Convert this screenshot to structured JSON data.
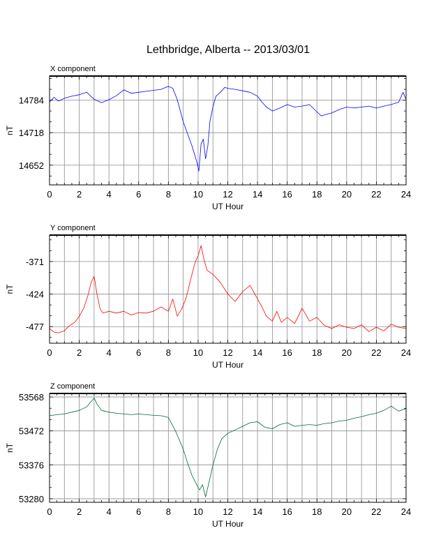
{
  "chart_data": {
    "title": "Lethbridge, Alberta -- 2013/03/01",
    "panels": [
      {
        "type": "line",
        "component_label": "X component",
        "xlabel": "UT Hour",
        "ylabel": "nT",
        "xlim": [
          0,
          24
        ],
        "xticks": [
          0,
          2,
          4,
          6,
          8,
          10,
          12,
          14,
          16,
          18,
          20,
          22,
          24
        ],
        "ylim": [
          14612,
          14833
        ],
        "yticks": [
          14652,
          14718,
          14784
        ],
        "grid": true,
        "color": "#0000ff",
        "series": [
          {
            "x": [
              0,
              0.3,
              0.6,
              1,
              1.5,
              2,
              2.5,
              3,
              3.5,
              4,
              4.5,
              5,
              5.5,
              6,
              6.5,
              7,
              7.5,
              8,
              8.3,
              8.6,
              9,
              9.3,
              9.6,
              9.9,
              10.05,
              10.2,
              10.35,
              10.5,
              10.65,
              10.8,
              11,
              11.2,
              11.5,
              11.8,
              12,
              12.5,
              13,
              13.5,
              14,
              14.3,
              14.6,
              15,
              15.5,
              16,
              16.5,
              17,
              17.5,
              18,
              18.3,
              18.6,
              19,
              19.5,
              20,
              20.5,
              21,
              21.5,
              22,
              22.5,
              23,
              23.5,
              23.8,
              24
            ],
            "y": [
              14780,
              14790,
              14782,
              14788,
              14792,
              14795,
              14800,
              14786,
              14779,
              14785,
              14793,
              14805,
              14798,
              14800,
              14802,
              14804,
              14806,
              14812,
              14808,
              14785,
              14740,
              14715,
              14690,
              14660,
              14640,
              14695,
              14705,
              14665,
              14690,
              14742,
              14770,
              14792,
              14800,
              14810,
              14808,
              14806,
              14803,
              14800,
              14792,
              14780,
              14770,
              14762,
              14768,
              14775,
              14770,
              14772,
              14775,
              14760,
              14752,
              14755,
              14758,
              14765,
              14770,
              14768,
              14770,
              14772,
              14768,
              14772,
              14775,
              14780,
              14800,
              14785
            ]
          }
        ]
      },
      {
        "type": "line",
        "component_label": "Y component",
        "xlabel": "UT Hour",
        "ylabel": "nT",
        "xlim": [
          0,
          24
        ],
        "xticks": [
          0,
          2,
          4,
          6,
          8,
          10,
          12,
          14,
          16,
          18,
          20,
          22,
          24
        ],
        "ylim": [
          -504,
          -328
        ],
        "yticks": [
          -477,
          -424,
          -371
        ],
        "grid": true,
        "color": "#ff0000",
        "series": [
          {
            "x": [
              0,
              0.3,
              0.6,
              1,
              1.3,
              1.7,
              2,
              2.3,
              2.6,
              2.8,
              3,
              3.2,
              3.4,
              3.6,
              4,
              4.5,
              5,
              5.5,
              6,
              6.5,
              7,
              7.5,
              8,
              8.3,
              8.6,
              8.9,
              9.2,
              9.5,
              9.8,
              10,
              10.2,
              10.4,
              10.6,
              11,
              11.5,
              12,
              12.5,
              13,
              13.5,
              14,
              14.3,
              14.6,
              15,
              15.3,
              15.6,
              16,
              16.5,
              17,
              17.5,
              18,
              18.5,
              19,
              19.5,
              20,
              20.5,
              21,
              21.5,
              22,
              22.5,
              23,
              23.5,
              24
            ],
            "y": [
              -480,
              -486,
              -487,
              -484,
              -476,
              -470,
              -460,
              -447,
              -425,
              -405,
              -395,
              -425,
              -448,
              -455,
              -452,
              -455,
              -452,
              -458,
              -454,
              -455,
              -452,
              -445,
              -452,
              -432,
              -460,
              -448,
              -430,
              -400,
              -372,
              -362,
              -345,
              -368,
              -385,
              -392,
              -405,
              -424,
              -436,
              -420,
              -410,
              -432,
              -445,
              -460,
              -468,
              -452,
              -470,
              -462,
              -472,
              -447,
              -468,
              -462,
              -475,
              -480,
              -474,
              -478,
              -480,
              -474,
              -485,
              -478,
              -484,
              -473,
              -478,
              -480
            ]
          }
        ]
      },
      {
        "type": "line",
        "component_label": "Z component",
        "xlabel": "UT Hour",
        "ylabel": "nT",
        "xlim": [
          0,
          24
        ],
        "xticks": [
          0,
          2,
          4,
          6,
          8,
          10,
          12,
          14,
          16,
          18,
          20,
          22,
          24
        ],
        "ylim": [
          53270,
          53578
        ],
        "yticks": [
          53280,
          53376,
          53472,
          53568
        ],
        "grid": true,
        "color": "#006633",
        "series": [
          {
            "x": [
              0,
              0.5,
              1,
              1.5,
              2,
              2.5,
              2.8,
              3,
              3.2,
              3.5,
              4,
              4.5,
              5,
              5.5,
              6,
              6.5,
              7,
              7.5,
              8,
              8.5,
              9,
              9.3,
              9.6,
              9.9,
              10.1,
              10.3,
              10.5,
              10.7,
              11,
              11.3,
              11.6,
              12,
              12.5,
              13,
              13.5,
              14,
              14.5,
              15,
              15.5,
              16,
              16.5,
              17,
              17.5,
              18,
              18.5,
              19,
              19.5,
              20,
              20.5,
              21,
              21.5,
              22,
              22.5,
              23,
              23.5,
              24
            ],
            "y": [
              53515,
              53518,
              53520,
              53525,
              53530,
              53540,
              53555,
              53565,
              53548,
              53530,
              53525,
              53522,
              53520,
              53518,
              53520,
              53518,
              53516,
              53515,
              53510,
              53470,
              53420,
              53380,
              53345,
              53320,
              53305,
              53320,
              53285,
              53320,
              53375,
              53420,
              53450,
              53465,
              53475,
              53485,
              53495,
              53498,
              53482,
              53478,
              53490,
              53495,
              53485,
              53488,
              53490,
              53488,
              53493,
              53495,
              53500,
              53502,
              53508,
              53512,
              53518,
              53522,
              53530,
              53542,
              53528,
              53535
            ]
          }
        ]
      }
    ]
  }
}
